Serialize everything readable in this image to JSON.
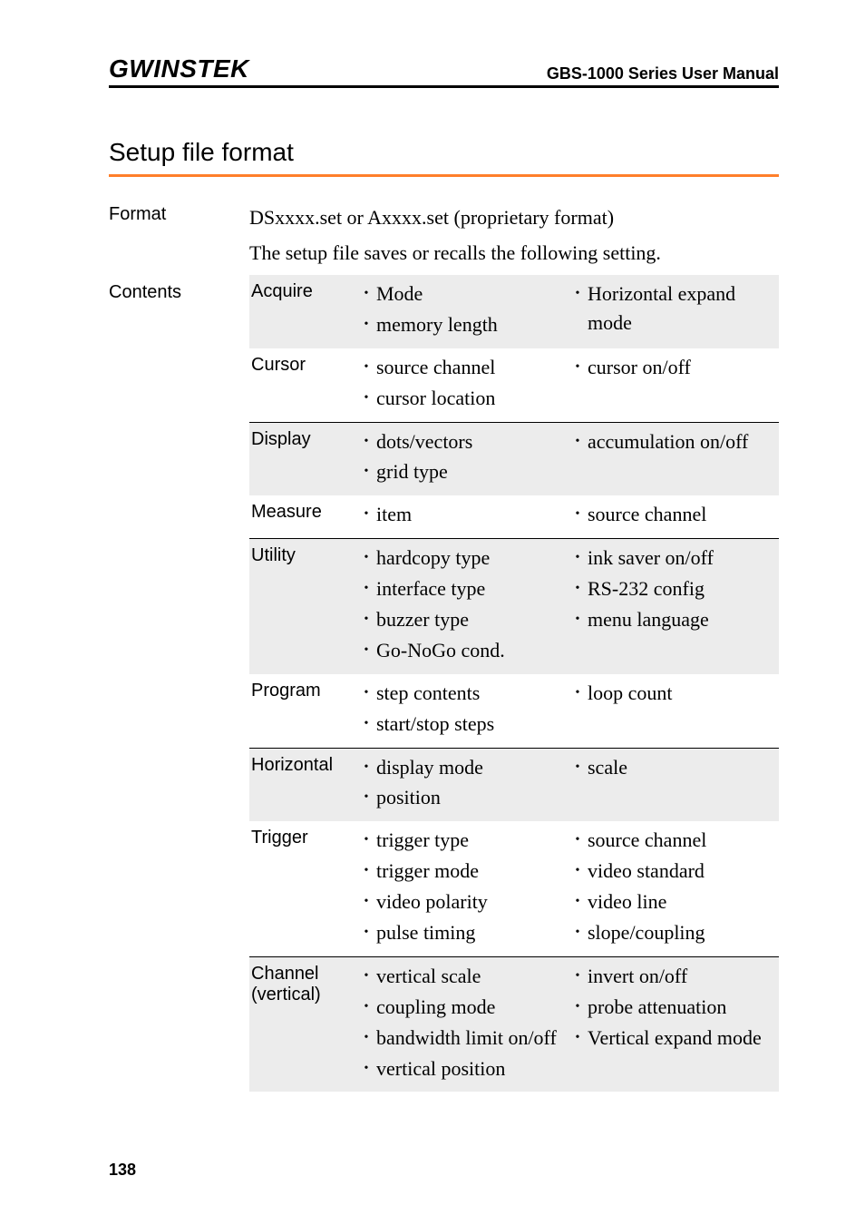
{
  "header": {
    "logo_text": "GWINSTEK",
    "manual_title": "GBS-1000 Series User Manual"
  },
  "section_title": "Setup file format",
  "format": {
    "label": "Format",
    "line1": "DSxxxx.set or Axxxx.set (proprietary format)",
    "line2": "The setup file saves or recalls the following setting."
  },
  "contents": {
    "label": "Contents",
    "rows": [
      {
        "category": "Acquire",
        "shade": true,
        "sep": false,
        "col1": [
          "Mode",
          "memory length"
        ],
        "col2": [
          "Horizontal expand mode"
        ]
      },
      {
        "category": "Cursor",
        "shade": false,
        "sep": true,
        "col1": [
          "source channel",
          "cursor location"
        ],
        "col2": [
          "cursor on/off"
        ]
      },
      {
        "category": "Display",
        "shade": true,
        "sep": false,
        "col1": [
          "dots/vectors",
          "grid type"
        ],
        "col2": [
          "accumulation on/off"
        ]
      },
      {
        "category": "Measure",
        "shade": false,
        "sep": true,
        "col1": [
          "item"
        ],
        "col2": [
          "source channel"
        ]
      },
      {
        "category": "Utility",
        "shade": true,
        "sep": false,
        "col1": [
          "hardcopy type",
          "interface type",
          "buzzer type",
          "Go-NoGo cond."
        ],
        "col2": [
          "ink saver on/off",
          "RS-232 config",
          "menu language"
        ]
      },
      {
        "category": "Program",
        "shade": false,
        "sep": true,
        "col1": [
          "step contents",
          "start/stop steps"
        ],
        "col2": [
          "loop count"
        ]
      },
      {
        "category": "Horizontal",
        "shade": true,
        "sep": false,
        "col1": [
          "display mode",
          "position"
        ],
        "col2": [
          "scale"
        ]
      },
      {
        "category": "Trigger",
        "shade": false,
        "sep": true,
        "col1": [
          "trigger type",
          "trigger mode",
          "video polarity",
          "pulse timing"
        ],
        "col2": [
          "source channel",
          "video standard",
          "video line",
          "slope/coupling"
        ]
      },
      {
        "category": "Channel (vertical)",
        "shade": true,
        "sep": false,
        "col1": [
          "vertical scale",
          "coupling mode",
          "bandwidth limit on/off",
          "vertical position"
        ],
        "col2": [
          "invert on/off",
          "probe attenuation",
          "Vertical expand mode"
        ]
      }
    ]
  },
  "page_number": "138",
  "colors": {
    "title_underline": "#ff7f2a",
    "shade_bg": "#ececec",
    "text": "#000000",
    "background": "#ffffff"
  }
}
